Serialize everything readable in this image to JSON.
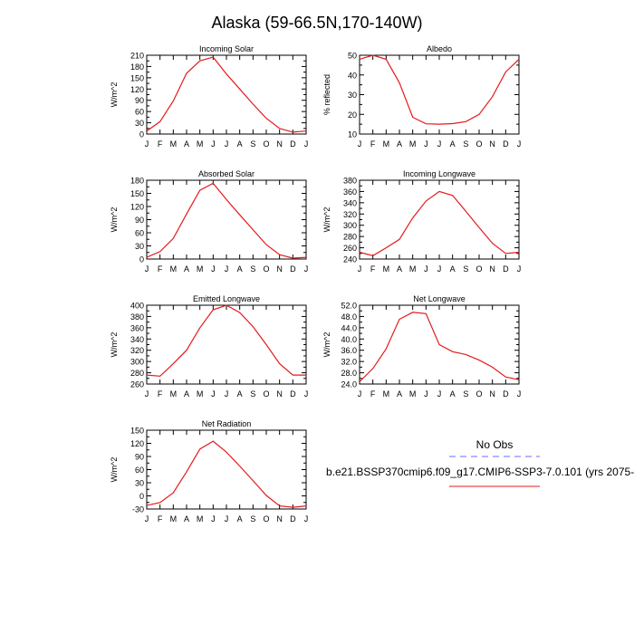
{
  "title": "Alaska (59-66.5N,170-140W)",
  "month_labels": [
    "J",
    "F",
    "M",
    "A",
    "M",
    "J",
    "J",
    "A",
    "S",
    "O",
    "N",
    "D",
    "J"
  ],
  "legend": {
    "obs_label": "No Obs",
    "model_label": "b.e21.BSSP370cmip6.f09_g17.CMIP6-SSP3-7.0.101 (yrs 2075-",
    "obs_color": "#6b6bff",
    "model_color": "#e41a1c"
  },
  "chart_data": [
    {
      "type": "line",
      "title": "Incoming Solar",
      "ylabel": "W/m^2",
      "ylim": [
        0,
        210
      ],
      "yticks": [
        "0",
        "30",
        "60",
        "90",
        "120",
        "150",
        "180",
        "210"
      ],
      "y": [
        8,
        33,
        88,
        162,
        195,
        205,
        160,
        120,
        80,
        42,
        15,
        5,
        8
      ]
    },
    {
      "type": "line",
      "title": "Albedo",
      "ylabel": "% reflected",
      "ylim": [
        10,
        50
      ],
      "yticks": [
        "10",
        "20",
        "30",
        "40",
        "50"
      ],
      "y": [
        48,
        50,
        48,
        36,
        18.5,
        15.2,
        15,
        15.3,
        16.3,
        20,
        29,
        41.5,
        48
      ]
    },
    {
      "type": "line",
      "title": "Absorbed Solar",
      "ylabel": "W/m^2",
      "ylim": [
        0,
        180
      ],
      "yticks": [
        "0",
        "30",
        "60",
        "90",
        "120",
        "150",
        "180"
      ],
      "y": [
        4,
        17,
        47,
        103,
        157,
        173,
        136,
        101,
        67,
        33,
        10,
        2,
        4
      ]
    },
    {
      "type": "line",
      "title": "Incoming Longwave",
      "ylabel": "W/m^2",
      "ylim": [
        240,
        380
      ],
      "yticks": [
        "240",
        "260",
        "280",
        "300",
        "320",
        "340",
        "360",
        "380"
      ],
      "y": [
        252,
        246,
        260,
        275,
        313,
        343,
        360,
        353,
        325,
        296,
        268,
        250,
        252
      ]
    },
    {
      "type": "line",
      "title": "Emitted Longwave",
      "ylabel": "W/m^2",
      "ylim": [
        260,
        400
      ],
      "yticks": [
        "260",
        "280",
        "300",
        "320",
        "340",
        "360",
        "380",
        "400"
      ],
      "y": [
        276,
        274,
        296,
        320,
        360,
        392,
        400,
        387,
        362,
        330,
        296,
        276,
        276
      ]
    },
    {
      "type": "line",
      "title": "Net Longwave",
      "ylabel": "W/m^2",
      "ylim": [
        24,
        52
      ],
      "yticks": [
        "24.0",
        "28.0",
        "32.0",
        "36.0",
        "40.0",
        "44.0",
        "48.0",
        "52.0"
      ],
      "y": [
        24.8,
        29.5,
        36.5,
        47,
        49.5,
        49,
        38,
        35.5,
        34.5,
        32.5,
        30,
        26.5,
        25.5
      ]
    },
    {
      "type": "line",
      "title": "Net Radiation",
      "ylabel": "W/m^2",
      "ylim": [
        -30,
        150
      ],
      "yticks": [
        "-30",
        "0",
        "30",
        "60",
        "90",
        "120",
        "150"
      ],
      "y": [
        -22,
        -15,
        7,
        55,
        107,
        125,
        100,
        68,
        35,
        1,
        -23,
        -26,
        -23
      ]
    }
  ]
}
